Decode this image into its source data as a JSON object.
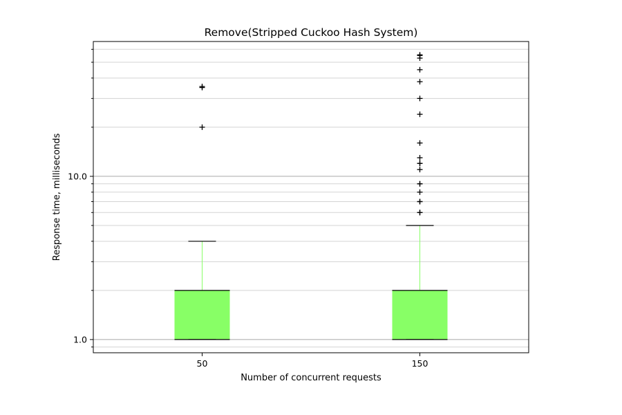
{
  "chart_data": {
    "type": "box",
    "title": "Remove(Stripped Cuckoo Hash System)",
    "xlabel": "Number of concurrent requests",
    "ylabel": "Response time, milliseconds",
    "yscale": "log",
    "ylim": [
      0.83,
      67
    ],
    "ytick_labels": [
      {
        "value": 1.0,
        "label": "1.0"
      },
      {
        "value": 10.0,
        "label": "10.0"
      }
    ],
    "grid": "horizontal major and minor",
    "box_color": "#88ff66",
    "categories": [
      "50",
      "150"
    ],
    "boxes": [
      {
        "category": "50",
        "q1": 1,
        "median": 1,
        "q3": 2,
        "whisker_low": 1,
        "whisker_high": 4,
        "outliers": [
          20,
          35,
          35.5
        ]
      },
      {
        "category": "150",
        "q1": 1,
        "median": 1,
        "q3": 2,
        "whisker_low": 1,
        "whisker_high": 5,
        "outliers": [
          6,
          6,
          7,
          7,
          8,
          9,
          9,
          11,
          12,
          12,
          13,
          16,
          24,
          30,
          38,
          45,
          53,
          55,
          55.5
        ]
      }
    ]
  }
}
